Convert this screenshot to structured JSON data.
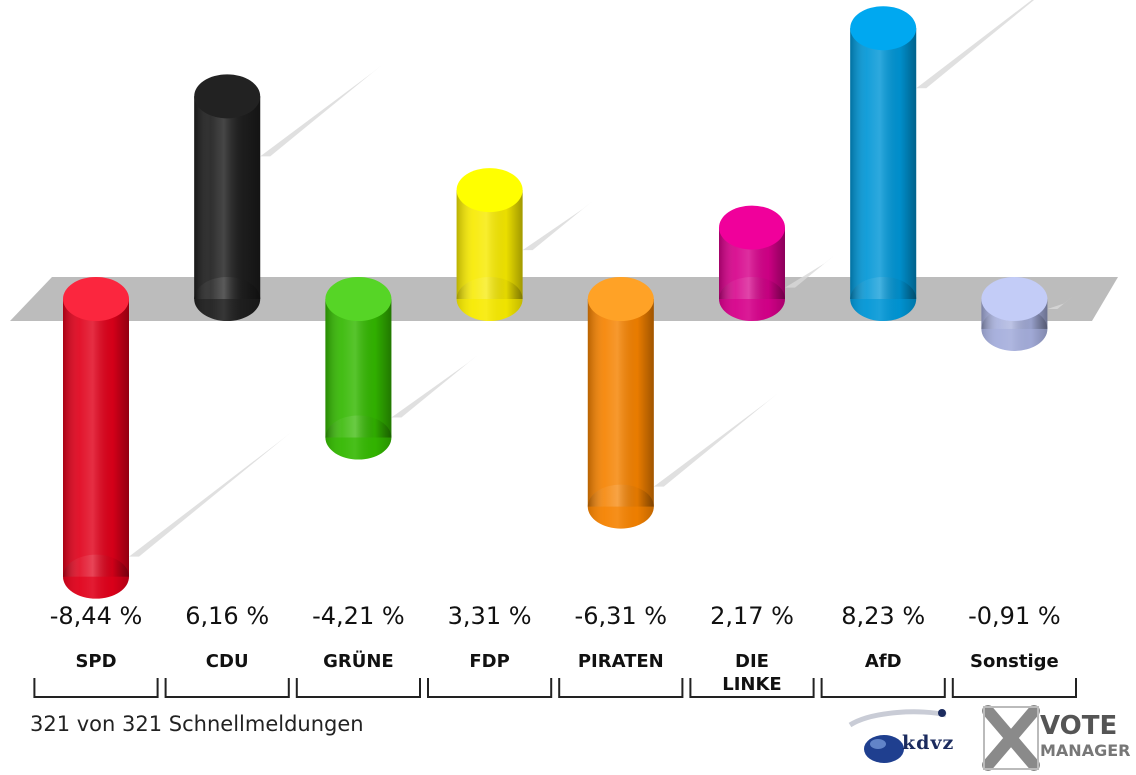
{
  "chart_data": {
    "type": "bar",
    "categories": [
      "SPD",
      "CDU",
      "GRÜNE",
      "FDP",
      "PIRATEN",
      "DIE\nLINKE",
      "AfD",
      "Sonstige"
    ],
    "values": [
      -8.44,
      6.16,
      -4.21,
      3.31,
      -6.31,
      2.17,
      8.23,
      -0.91
    ],
    "value_labels": [
      "-8,44 %",
      "6,16 %",
      "-4,21 %",
      "3,31 %",
      "-6,31 %",
      "2,17 %",
      "8,23 %",
      "-0,91 %"
    ],
    "colors": [
      "#e0001a",
      "#1e1e1e",
      "#33b800",
      "#f7ea00",
      "#f58200",
      "#d6008a",
      "#0096d6",
      "#a5aedc"
    ],
    "ylim": [
      -9,
      9
    ]
  },
  "footer": {
    "status": "321 von 321 Schnellmeldungen",
    "logo_kdvz": "kdvz",
    "logo_vote": "VOTE",
    "logo_manager": "MANAGER"
  }
}
